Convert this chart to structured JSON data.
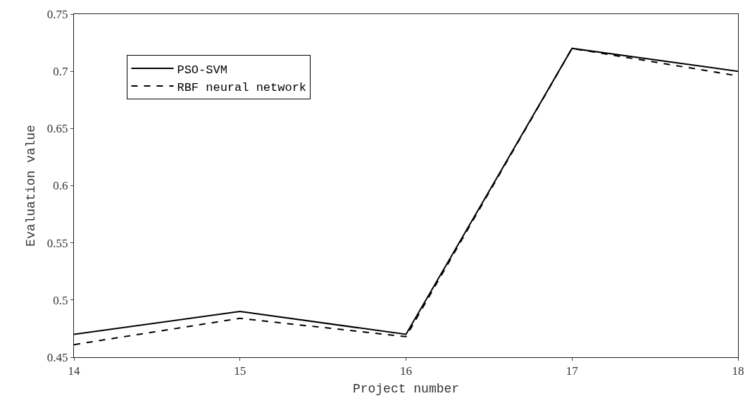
{
  "chart_data": {
    "type": "line",
    "xlabel": "Project number",
    "ylabel": "Evaluation value",
    "x": [
      14,
      15,
      16,
      17,
      18
    ],
    "series": [
      {
        "name": "PSO-SVM",
        "color": "#000000",
        "values": [
          0.47,
          0.49,
          0.47,
          0.72,
          0.7
        ],
        "line_style": "solid"
      },
      {
        "name": "RBF neural network",
        "color": "#000000",
        "values": [
          0.461,
          0.484,
          0.468,
          0.72,
          0.696
        ],
        "line_style": "dashed"
      }
    ],
    "xlim": [
      14,
      18
    ],
    "xticks": [
      14,
      15,
      16,
      17,
      18
    ],
    "ylim": [
      0.45,
      0.75
    ],
    "yticks": [
      {
        "value": 0.45,
        "label": "0.45"
      },
      {
        "value": 0.5,
        "label": "0.5"
      },
      {
        "value": 0.55,
        "label": "0.55"
      },
      {
        "value": 0.6,
        "label": "0.6"
      },
      {
        "value": 0.65,
        "label": "0.65"
      },
      {
        "value": 0.7,
        "label": "0.7"
      },
      {
        "value": 0.75,
        "label": "0.75"
      }
    ],
    "grid": false,
    "legend": "top left",
    "marker": "none"
  }
}
